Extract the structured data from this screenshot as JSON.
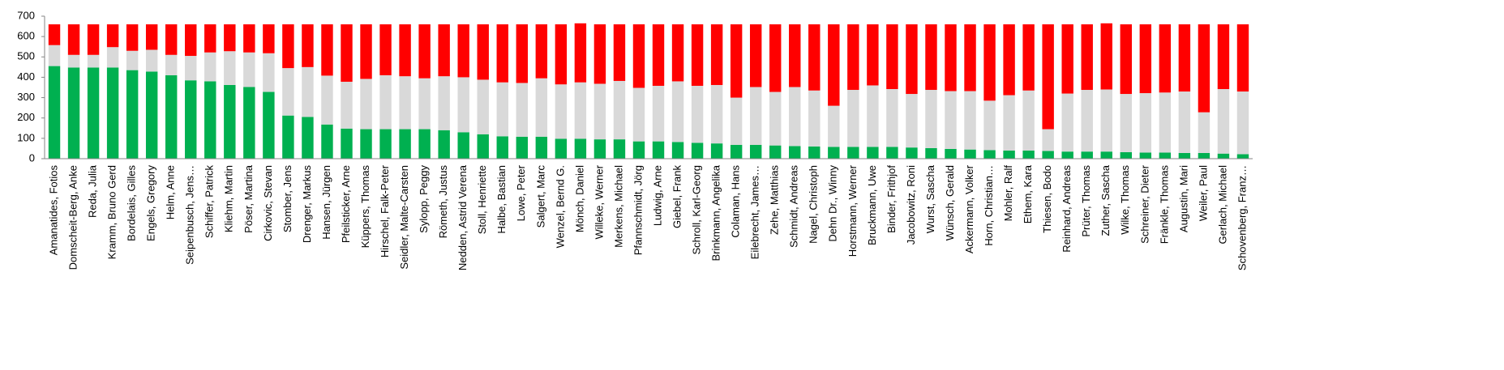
{
  "chart_data": {
    "type": "stacked-bar",
    "categories": [
      "Amanatides, Fotios",
      "Domscheit-Berg, Anke",
      "Reda, Julia",
      "Kramm, Bruno Gerd",
      "Bordelais, Gilles",
      "Engels, Gregory",
      "Helm, Anne",
      "Seipenbusch, Jens…",
      "Schiffer, Patrick",
      "Kliehm, Martin",
      "Pöser, Martina",
      "Cirkovic, Stevan",
      "Stomber, Jens",
      "Drenger, Markus",
      "Hansen, Jürgen",
      "Pfeilsticker, Arne",
      "Küppers, Thomas",
      "Hirschel, Falk-Peter",
      "Seidler, Malte-Carsten",
      "Sylopp, Peggy",
      "Römeth, Justus",
      "Nedden, Astrid Verena",
      "Stoll, Henriette",
      "Halbe, Bastian",
      "Lowe, Peter",
      "Salgert, Marc",
      "Wenzel, Bernd G.",
      "Mönch, Daniel",
      "Willeke, Werner",
      "Merkens, Michael",
      "Pfannschmidt, Jörg",
      "Ludwig, Arne",
      "Giebel, Frank",
      "Schroll, Karl-Georg",
      "Brinkmann, Angelika",
      "Colaman, Hans",
      "Eilebrecht, James…",
      "Zehe, Matthias",
      "Schmidt, Andreas",
      "Nagel, Christoph",
      "Dehn Dr., Winny",
      "Horstmann, Werner",
      "Bruckmann, Uwe",
      "Binder, Frithjof",
      "Jacobowitz, Roni",
      "Wurst, Sascha",
      "Wünsch, Gerald",
      "Ackermann, Volker",
      "Horn, Christian…",
      "Mohler, Ralf",
      "Ethem, Kara",
      "Thiesen, Bodo",
      "Reinhard, Andreas",
      "Prüter, Thomas",
      "Zuther, Sascha",
      "Wilke, Thomas",
      "Schreiner, Dieter",
      "Fränkle, Thomas",
      "Augustin, Mari",
      "Weiler, Paul",
      "Gerlach, Michael",
      "Schovenberg, Franz…"
    ],
    "series": [
      {
        "color": "#00b050",
        "values": [
          455,
          448,
          448,
          448,
          435,
          428,
          410,
          385,
          380,
          362,
          352,
          328,
          212,
          205,
          168,
          148,
          145,
          145,
          145,
          145,
          140,
          130,
          120,
          110,
          108,
          108,
          98,
          98,
          95,
          95,
          85,
          85,
          82,
          78,
          75,
          68,
          68,
          65,
          62,
          60,
          58,
          58,
          58,
          58,
          55,
          52,
          48,
          45,
          42,
          40,
          40,
          38,
          35,
          35,
          35,
          32,
          30,
          30,
          28,
          28,
          25,
          22
        ]
      },
      {
        "color": "#d9d9d9",
        "values": [
          103,
          62,
          62,
          100,
          95,
          107,
          100,
          120,
          142,
          166,
          170,
          190,
          233,
          245,
          240,
          230,
          247,
          265,
          260,
          250,
          265,
          270,
          268,
          265,
          264,
          287,
          267,
          277,
          273,
          287,
          263,
          273,
          298,
          280,
          287,
          232,
          284,
          263,
          290,
          275,
          202,
          280,
          302,
          284,
          263,
          286,
          284,
          287,
          243,
          272,
          295,
          107,
          285,
          303,
          305,
          286,
          292,
          295,
          302,
          200,
          317,
          308
        ]
      },
      {
        "color": "#ff0000",
        "values": [
          102,
          150,
          150,
          112,
          130,
          125,
          150,
          155,
          138,
          132,
          138,
          142,
          215,
          210,
          252,
          282,
          268,
          250,
          255,
          265,
          255,
          260,
          272,
          285,
          288,
          265,
          295,
          290,
          292,
          278,
          312,
          302,
          280,
          302,
          298,
          360,
          308,
          332,
          308,
          325,
          400,
          322,
          300,
          318,
          342,
          322,
          328,
          328,
          375,
          348,
          325,
          515,
          340,
          322,
          325,
          342,
          338,
          335,
          330,
          432,
          318,
          330
        ]
      }
    ],
    "ylim": [
      0,
      700
    ],
    "yticks": [
      0,
      100,
      200,
      300,
      400,
      500,
      600,
      700
    ]
  }
}
